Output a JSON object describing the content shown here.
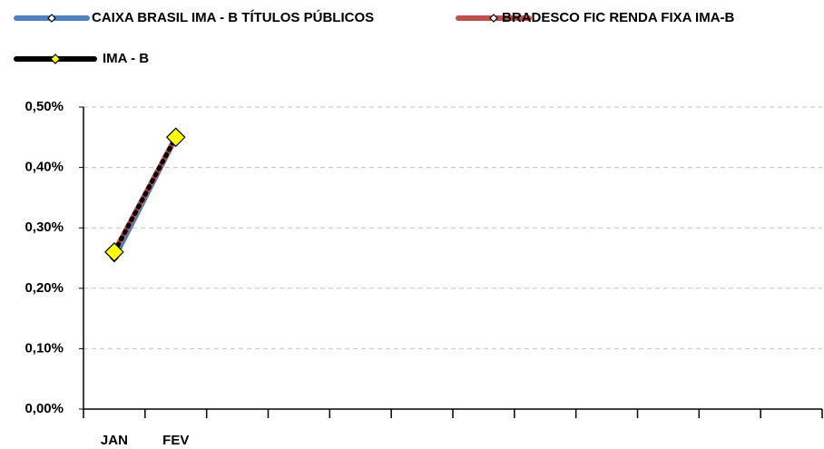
{
  "chart_data": {
    "type": "line",
    "categories": [
      "JAN",
      "FEV",
      null,
      null,
      null,
      null,
      null,
      null,
      null,
      null,
      null,
      null
    ],
    "series": [
      {
        "name": "CAIXA BRASIL IMA - B TÍTULOS PÚBLICOS",
        "color": "#4f81bd",
        "marker_color": "#ffffff",
        "values": [
          0.25,
          0.45,
          null,
          null,
          null,
          null,
          null,
          null,
          null,
          null,
          null,
          null
        ]
      },
      {
        "name": "BRADESCO FIC RENDA FIXA IMA-B",
        "color": "#c0504d",
        "marker_color": "#ffffff",
        "values": [
          0.26,
          0.45,
          null,
          null,
          null,
          null,
          null,
          null,
          null,
          null,
          null,
          null
        ]
      },
      {
        "name": "IMA - B",
        "color": "#000000",
        "marker_color": "#ffff00",
        "values": [
          0.26,
          0.45,
          null,
          null,
          null,
          null,
          null,
          null,
          null,
          null,
          null,
          null
        ]
      }
    ],
    "ylim": [
      0,
      0.5
    ],
    "yticks": [
      {
        "value": 0,
        "label": "0,00%"
      },
      {
        "value": 0.1,
        "label": "0,10%"
      },
      {
        "value": 0.2,
        "label": "0,20%"
      },
      {
        "value": 0.3,
        "label": "0,30%"
      },
      {
        "value": 0.4,
        "label": "0,40%"
      },
      {
        "value": 0.5,
        "label": "0,50%"
      }
    ],
    "grid": true,
    "legend": "top"
  }
}
